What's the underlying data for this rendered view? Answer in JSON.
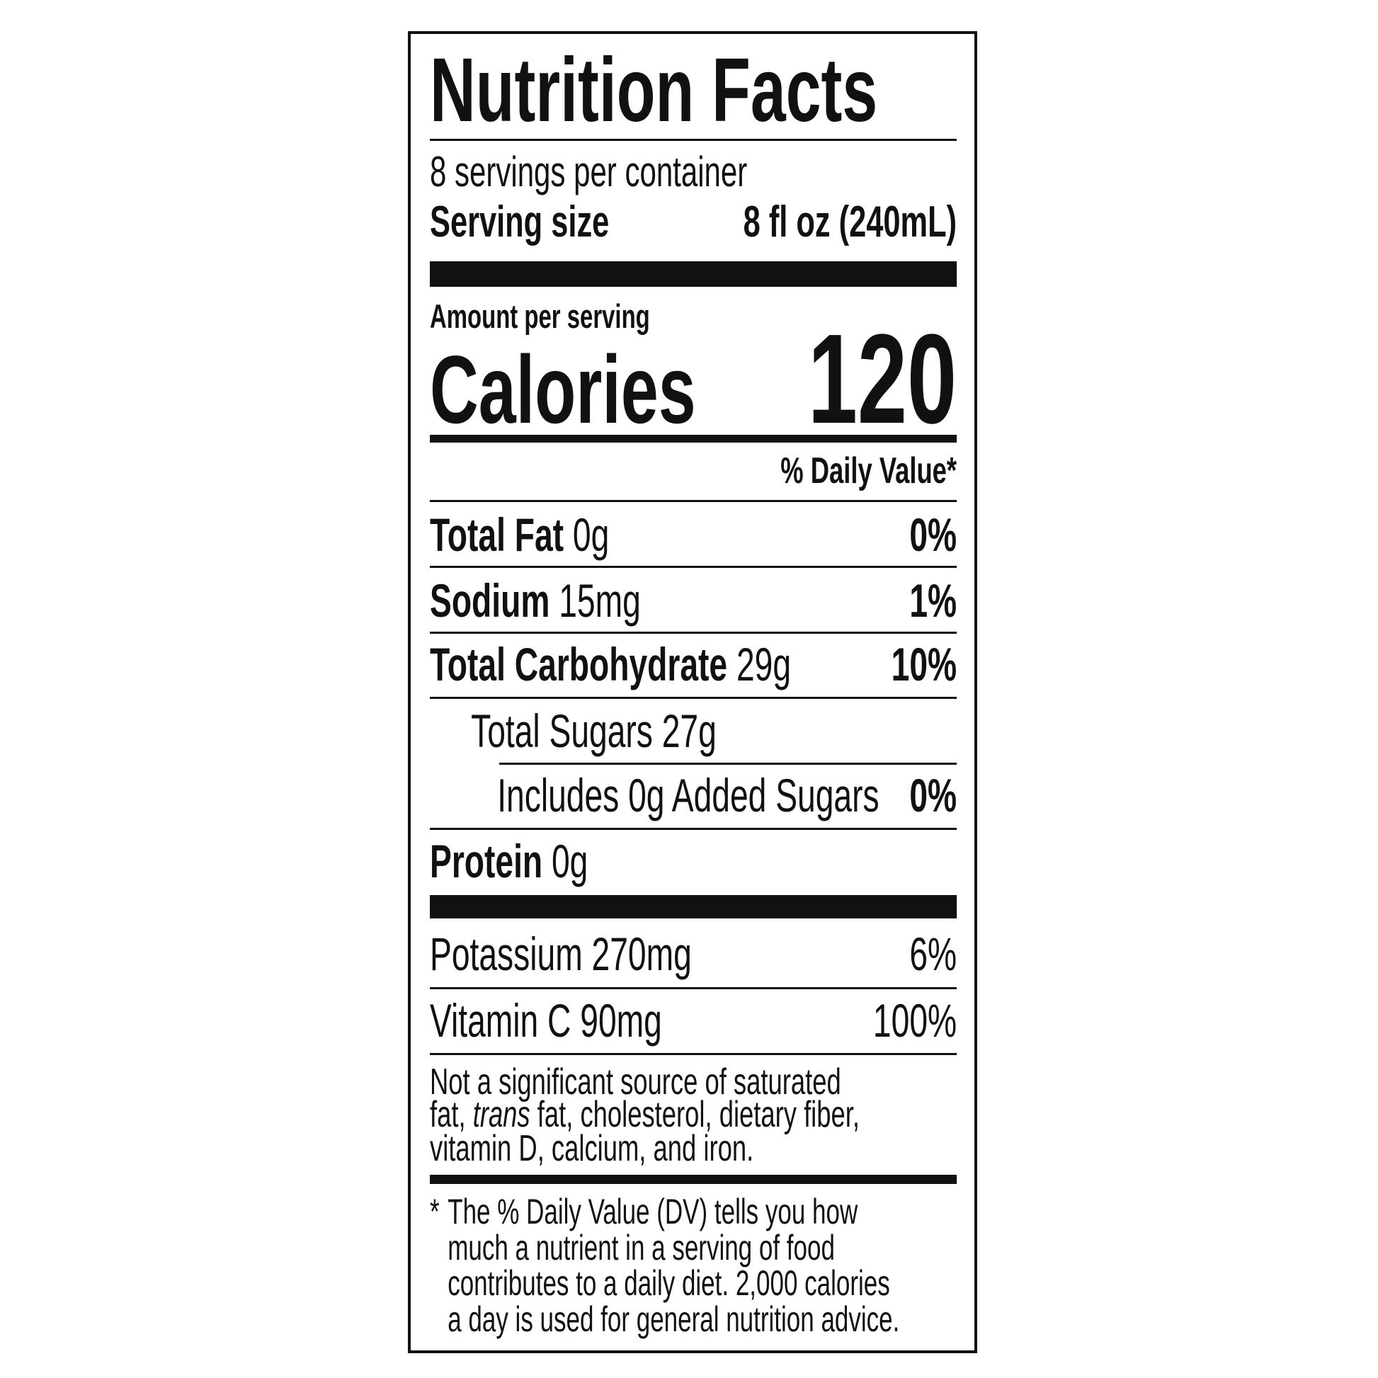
{
  "header": {
    "title": "Nutrition Facts",
    "servings": "8 servings per container",
    "serving_size_label": "Serving size",
    "serving_size_value": "8 fl oz (240mL)"
  },
  "calories": {
    "amount_per_serving": "Amount per serving",
    "label": "Calories",
    "value": "120"
  },
  "daily_value_header": "% Daily Value*",
  "nutrients": [
    {
      "name": "Total Fat",
      "amount": "0g",
      "dv": "0%"
    },
    {
      "name": "Sodium",
      "amount": "15mg",
      "dv": "1%"
    },
    {
      "name": "Total Carbohydrate",
      "amount": "29g",
      "dv": "10%"
    },
    {
      "label": "Total Sugars 27g"
    },
    {
      "label": "Includes 0g Added Sugars",
      "dv": "0%"
    },
    {
      "name": "Protein",
      "amount": "0g"
    }
  ],
  "vitamins": [
    {
      "label": "Potassium 270mg",
      "dv": "6%"
    },
    {
      "label": "Vitamin C 90mg",
      "dv": "100%"
    }
  ],
  "note": {
    "line1": "Not a significant source of saturated",
    "line2_start": "fat,",
    "line2_italic": "trans",
    "line2_end": "fat, cholesterol, dietary fiber,",
    "line3": "vitamin D, calcium, and iron."
  },
  "footnote": {
    "star": "*",
    "lines": [
      "The % Daily Value (DV) tells you how",
      "much a nutrient in a serving of food",
      "contributes to a daily diet. 2,000 calories",
      "a day is used for general nutrition advice."
    ]
  }
}
